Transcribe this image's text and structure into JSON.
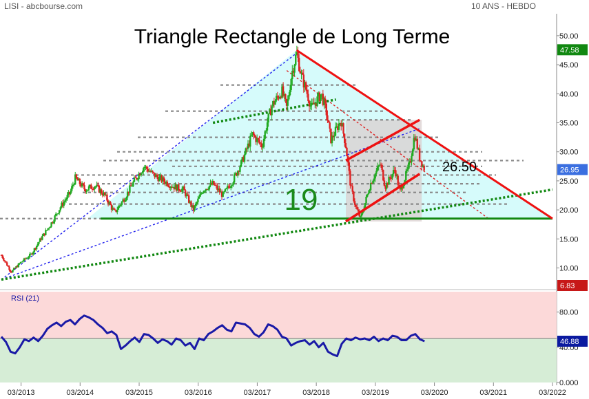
{
  "header": {
    "left": "LISI - abcbourse.com",
    "right": "10 ANS - HEBDO"
  },
  "colors": {
    "up": "#22aa22",
    "down": "#dd2222",
    "triangle_fill": "#d6fbfb",
    "rsi_line": "#1a1aa6",
    "rsi_overbought_zone": "#fcd9d9",
    "rsi_oversold_zone": "#d6edd6",
    "trend_red": "#ee1111",
    "support_green": "#118811",
    "dashed_blue": "#2222ee"
  },
  "chart_data": [
    {
      "type": "candlestick",
      "title": "Triangle Rectangle de Long Terme",
      "x_tick_labels": [
        "03/2013",
        "03/2014",
        "03/2015",
        "03/2016",
        "03/2017",
        "03/2018",
        "03/2019",
        "03/2020",
        "03/2021",
        "03/2022"
      ],
      "x_range": [
        "2012-11",
        "2022-03"
      ],
      "y_ticks": [
        10,
        15,
        20,
        25,
        30,
        35,
        40,
        45,
        50
      ],
      "y_tick_labels": [
        "10.00",
        "15.00",
        "20.00",
        "25.00",
        "30.00",
        "35.00",
        "40.00",
        "45.00",
        "50.00"
      ],
      "ylim": [
        6,
        51
      ],
      "price_path": [
        [
          "2012-11",
          12.2
        ],
        [
          "2013-01",
          9.3
        ],
        [
          "2013-03",
          11.0
        ],
        [
          "2013-05",
          12.3
        ],
        [
          "2013-07",
          15.0
        ],
        [
          "2013-09",
          17.5
        ],
        [
          "2013-11",
          20.5
        ],
        [
          "2014-01",
          23.0
        ],
        [
          "2014-02",
          25.5
        ],
        [
          "2014-04",
          23.5
        ],
        [
          "2014-06",
          24.2
        ],
        [
          "2014-08",
          22.5
        ],
        [
          "2014-10",
          19.5
        ],
        [
          "2014-12",
          22.0
        ],
        [
          "2015-02",
          25.0
        ],
        [
          "2015-04",
          27.5
        ],
        [
          "2015-06",
          26.0
        ],
        [
          "2015-08",
          25.0
        ],
        [
          "2015-10",
          24.0
        ],
        [
          "2015-12",
          23.5
        ],
        [
          "2016-02",
          20.0
        ],
        [
          "2016-04",
          23.5
        ],
        [
          "2016-06",
          24.5
        ],
        [
          "2016-08",
          22.5
        ],
        [
          "2016-10",
          25.0
        ],
        [
          "2016-12",
          28.5
        ],
        [
          "2017-02",
          33.0
        ],
        [
          "2017-04",
          31.0
        ],
        [
          "2017-05",
          35.0
        ],
        [
          "2017-06",
          38.0
        ],
        [
          "2017-08",
          40.5
        ],
        [
          "2017-09",
          37.5
        ],
        [
          "2017-10",
          43.5
        ],
        [
          "2017-11",
          47.0
        ],
        [
          "2017-12",
          43.0
        ],
        [
          "2018-01",
          40.5
        ],
        [
          "2018-02",
          37.5
        ],
        [
          "2018-04",
          40.0
        ],
        [
          "2018-05",
          37.0
        ],
        [
          "2018-06",
          32.0
        ],
        [
          "2018-08",
          35.5
        ],
        [
          "2018-09",
          31.0
        ],
        [
          "2018-10",
          24.0
        ],
        [
          "2018-11",
          20.5
        ],
        [
          "2018-12",
          18.5
        ],
        [
          "2019-02",
          24.5
        ],
        [
          "2019-04",
          28.0
        ],
        [
          "2019-05",
          24.0
        ],
        [
          "2019-07",
          27.0
        ],
        [
          "2019-08",
          23.0
        ],
        [
          "2019-10",
          28.0
        ],
        [
          "2019-11",
          33.0
        ],
        [
          "2019-12",
          29.0
        ],
        [
          "2020-01",
          26.95
        ]
      ],
      "annotations": [
        {
          "text": "19",
          "value": 19
        },
        {
          "text": "26.50",
          "value": 26.5
        }
      ],
      "price_tags": [
        {
          "text": "47.58",
          "value": 47.58,
          "color": "#118811"
        },
        {
          "text": "26.95",
          "value": 26.95,
          "color": "#3b6fe0"
        },
        {
          "text": "6.83",
          "value": 6.83,
          "color": "#c71818"
        }
      ],
      "trendlines": {
        "triangle_top": [
          [
            "2017-11",
            47.5
          ],
          [
            "2022-03",
            18.5
          ]
        ],
        "triangle_base": 18.5,
        "channel_upper": [
          [
            "2018-09",
            28.5
          ],
          [
            "2019-12",
            35.5
          ]
        ],
        "channel_lower": [
          [
            "2018-09",
            18.0
          ],
          [
            "2019-12",
            26.2
          ]
        ],
        "green_dotted_1": [
          [
            "2012-11",
            8.0
          ],
          [
            "2022-03",
            23.5
          ]
        ],
        "green_dotted_2": [
          [
            "2016-06",
            35.0
          ],
          [
            "2018-07",
            39.0
          ]
        ],
        "blue_dashed_1": [
          [
            "2012-11",
            8.0
          ],
          [
            "2017-11",
            47.0
          ]
        ],
        "blue_dashed_2": [
          [
            "2012-11",
            8.0
          ],
          [
            "2019-12",
            34.0
          ]
        ],
        "red_dotted": [
          [
            "2017-09",
            44.0
          ],
          [
            "2021-02",
            18.5
          ]
        ]
      },
      "horizontal_levels": [
        41.5,
        37.0,
        35.5,
        32.5,
        30.0,
        28.5,
        27.5,
        26.0,
        24.5,
        23.0,
        21.0,
        18.5
      ]
    },
    {
      "type": "line",
      "title": "RSI (21)",
      "y_tick_labels": [
        "0.000",
        "40.00",
        "80.00"
      ],
      "y_ticks": [
        0,
        40,
        80
      ],
      "ylim": [
        0,
        100
      ],
      "last_value_label": "46.88",
      "last_value": 46.88,
      "midline": 50,
      "values": [
        52,
        46,
        35,
        33,
        40,
        49,
        47,
        51,
        47,
        53,
        61,
        65,
        68,
        64,
        69,
        71,
        66,
        72,
        76,
        74,
        71,
        66,
        62,
        56,
        58,
        54,
        38,
        42,
        47,
        51,
        46,
        55,
        54,
        50,
        45,
        49,
        47,
        43,
        50,
        48,
        42,
        45,
        38,
        50,
        48,
        55,
        58,
        62,
        65,
        60,
        58,
        68,
        67,
        66,
        62,
        55,
        52,
        57,
        66,
        64,
        60,
        52,
        50,
        42,
        45,
        47,
        48,
        43,
        47,
        40,
        45,
        35,
        32,
        30,
        44,
        50,
        48,
        51,
        49,
        50,
        48,
        52,
        47,
        50,
        48,
        53,
        52,
        48,
        48,
        53,
        55,
        49,
        46.88
      ]
    }
  ]
}
